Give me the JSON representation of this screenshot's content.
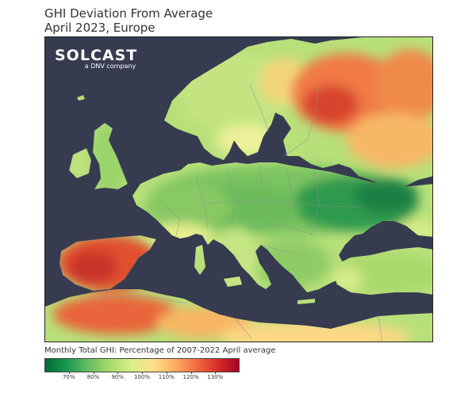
{
  "title": {
    "line1": "GHI Deviation From Average",
    "line2": "April 2023, Europe"
  },
  "logo": {
    "brand": "SOLCAST",
    "subtitle": "a DNV company"
  },
  "legend": {
    "caption": "Monthly Total GHI: Percentage of 2007-2022 April average",
    "range": [
      60,
      140
    ],
    "ticks": [
      "70%",
      "80%",
      "90%",
      "100%",
      "110%",
      "120%",
      "130%"
    ],
    "tick_values": [
      70,
      80,
      90,
      100,
      110,
      120,
      130
    ],
    "colors": [
      "#006837",
      "#1a9850",
      "#66bd63",
      "#a6d96a",
      "#d9ef8b",
      "#fee08b",
      "#fdae61",
      "#f46d43",
      "#d73027",
      "#a50026"
    ]
  },
  "map": {
    "sea_color": "#363b4f",
    "border_color": "#8a8f9c"
  }
}
